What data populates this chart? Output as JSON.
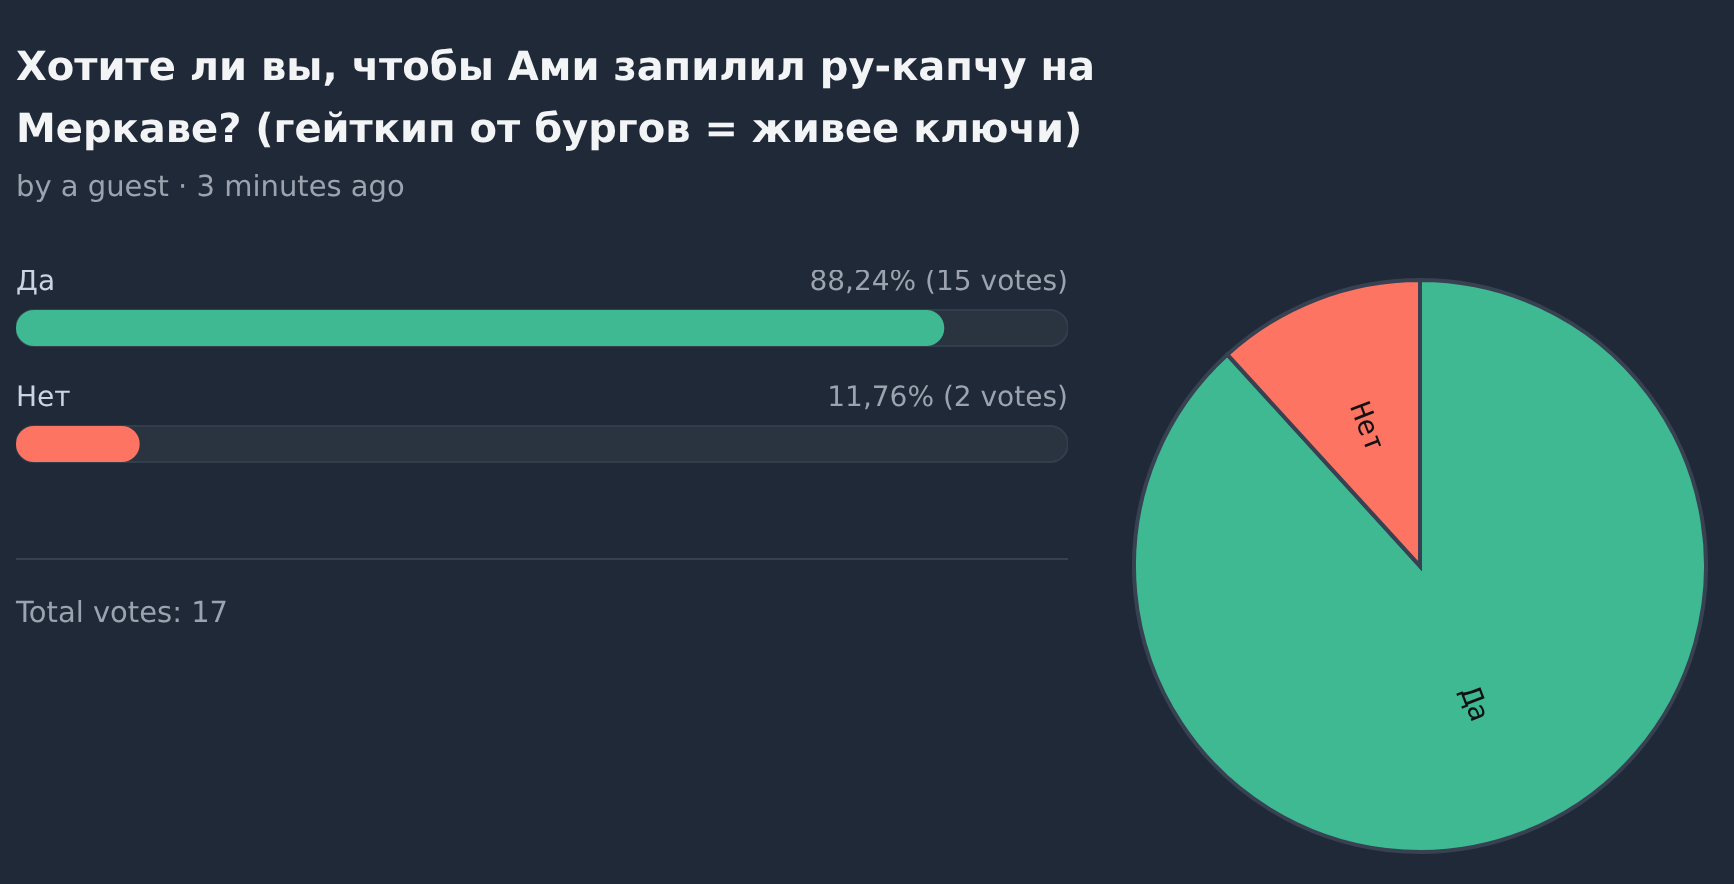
{
  "chart_data": [
    {
      "type": "bar",
      "orientation": "horizontal",
      "title": "Хотите ли вы, чтобы Ами запилил ру-капчу на Меркаве? (гейткип от бургов = живее ключи)",
      "subtitle": "by a guest · 3 minutes ago",
      "categories": [
        "Да",
        "Нет"
      ],
      "values": [
        88.24,
        11.76
      ],
      "colors": [
        "#3fb992",
        "#fe7463"
      ],
      "value_labels": [
        "88,24% (15 votes)",
        "11,76% (2 votes)"
      ],
      "xlim": [
        0,
        100
      ],
      "tick_labels": false,
      "annotations": [
        "Total votes: 17"
      ]
    },
    {
      "type": "pie",
      "categories": [
        "Да",
        "Нет"
      ],
      "values": [
        88.24,
        11.76
      ],
      "colors": [
        "#3fb992",
        "#fe7463"
      ]
    }
  ]
}
